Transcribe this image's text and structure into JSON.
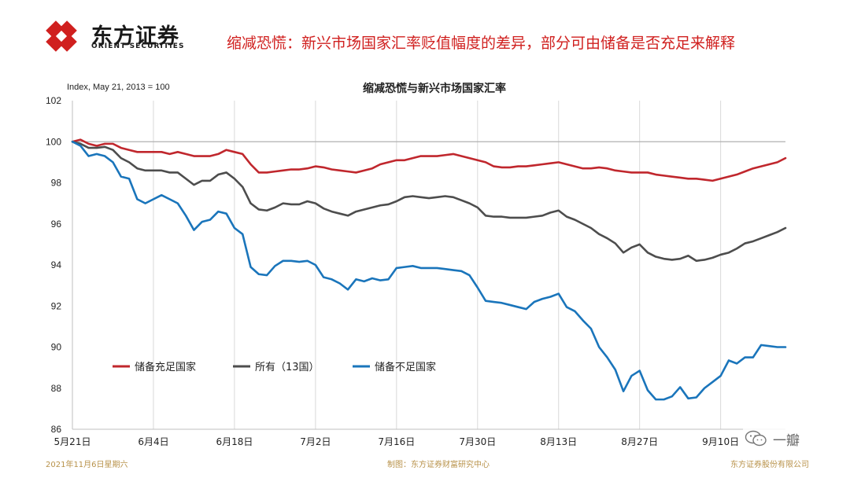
{
  "brand": {
    "name_cn": "东方证券",
    "name_en": "ORIENT SECURITIES",
    "logo_color": "#d0201f"
  },
  "slide": {
    "headline": "缩减恐慌：新兴市场国家汇率贬值幅度的差异，部分可由储备是否充足来解释"
  },
  "footer": {
    "date": "2021年11月6日星期六",
    "source": "制图：东方证券财富研究中心",
    "company": "东方证券股份有限公司"
  },
  "watermark": {
    "text": "一瓣",
    "icon": "wechat-icon"
  },
  "chart_data": {
    "type": "line",
    "title": "缩减恐慌与新兴市场国家汇率",
    "ylabel": "Index, May 21, 2013 = 100",
    "ylim": [
      86,
      102
    ],
    "yticks": [
      86,
      88,
      90,
      92,
      94,
      96,
      98,
      100,
      102
    ],
    "xlim": [
      0,
      88
    ],
    "xticks": [
      {
        "x": 0,
        "label": "5月21日"
      },
      {
        "x": 10,
        "label": "6月4日"
      },
      {
        "x": 20,
        "label": "6月18日"
      },
      {
        "x": 30,
        "label": "7月2日"
      },
      {
        "x": 40,
        "label": "7月16日"
      },
      {
        "x": 50,
        "label": "7月30日"
      },
      {
        "x": 60,
        "label": "8月13日"
      },
      {
        "x": 70,
        "label": "8月27日"
      },
      {
        "x": 80,
        "label": "9月10日"
      }
    ],
    "reference_line": 100,
    "grid": "vertical",
    "legend_position": "lower-left",
    "series": [
      {
        "name": "储备充足国家",
        "color": "#c0272d",
        "values": [
          100,
          100.1,
          99.9,
          99.8,
          99.9,
          99.9,
          99.7,
          99.6,
          99.5,
          99.5,
          99.5,
          99.5,
          99.4,
          99.5,
          99.4,
          99.3,
          99.3,
          99.3,
          99.4,
          99.6,
          99.5,
          99.4,
          98.9,
          98.5,
          98.5,
          98.55,
          98.6,
          98.65,
          98.65,
          98.7,
          98.8,
          98.75,
          98.65,
          98.6,
          98.55,
          98.5,
          98.6,
          98.7,
          98.9,
          99.0,
          99.1,
          99.1,
          99.2,
          99.3,
          99.3,
          99.3,
          99.35,
          99.4,
          99.3,
          99.2,
          99.1,
          99.0,
          98.8,
          98.75,
          98.75,
          98.8,
          98.8,
          98.85,
          98.9,
          98.95,
          99.0,
          98.9,
          98.8,
          98.7,
          98.7,
          98.75,
          98.7,
          98.6,
          98.55,
          98.5,
          98.5,
          98.5,
          98.4,
          98.35,
          98.3,
          98.25,
          98.2,
          98.2,
          98.15,
          98.1,
          98.2,
          98.3,
          98.4,
          98.55,
          98.7,
          98.8,
          98.9,
          99.0,
          99.2
        ]
      },
      {
        "name": "所有（13国）",
        "color": "#4d4d4d",
        "values": [
          100,
          99.9,
          99.7,
          99.7,
          99.75,
          99.6,
          99.2,
          99.0,
          98.7,
          98.6,
          98.6,
          98.6,
          98.5,
          98.5,
          98.2,
          97.9,
          98.1,
          98.1,
          98.4,
          98.5,
          98.2,
          97.8,
          97.0,
          96.7,
          96.65,
          96.8,
          97.0,
          96.95,
          96.95,
          97.1,
          97.0,
          96.75,
          96.6,
          96.5,
          96.4,
          96.6,
          96.7,
          96.8,
          96.9,
          96.95,
          97.1,
          97.3,
          97.35,
          97.3,
          97.25,
          97.3,
          97.35,
          97.3,
          97.15,
          97.0,
          96.8,
          96.4,
          96.35,
          96.35,
          96.3,
          96.3,
          96.3,
          96.35,
          96.4,
          96.55,
          96.65,
          96.35,
          96.2,
          96.0,
          95.8,
          95.5,
          95.3,
          95.05,
          94.6,
          94.85,
          95.0,
          94.6,
          94.4,
          94.3,
          94.25,
          94.3,
          94.45,
          94.2,
          94.25,
          94.35,
          94.5,
          94.6,
          94.8,
          95.05,
          95.15,
          95.3,
          95.45,
          95.6,
          95.8
        ]
      },
      {
        "name": "储备不足国家",
        "color": "#1a75bb",
        "values": [
          100,
          99.8,
          99.3,
          99.4,
          99.3,
          99.0,
          98.3,
          98.2,
          97.2,
          97.0,
          97.2,
          97.4,
          97.2,
          97.0,
          96.4,
          95.7,
          96.1,
          96.2,
          96.6,
          96.5,
          95.8,
          95.5,
          93.9,
          93.55,
          93.5,
          93.95,
          94.2,
          94.2,
          94.15,
          94.2,
          94.0,
          93.4,
          93.3,
          93.1,
          92.8,
          93.3,
          93.2,
          93.35,
          93.25,
          93.3,
          93.85,
          93.9,
          93.95,
          93.85,
          93.85,
          93.85,
          93.8,
          93.75,
          93.7,
          93.5,
          92.9,
          92.25,
          92.2,
          92.15,
          92.05,
          91.95,
          91.85,
          92.2,
          92.35,
          92.45,
          92.6,
          91.95,
          91.75,
          91.3,
          90.9,
          90.0,
          89.5,
          88.9,
          87.85,
          88.6,
          88.85,
          87.9,
          87.45,
          87.45,
          87.6,
          88.05,
          87.5,
          87.55,
          88.0,
          88.3,
          88.6,
          89.35,
          89.2,
          89.5,
          89.5,
          90.1,
          90.05,
          90.0,
          90.0
        ]
      }
    ]
  }
}
